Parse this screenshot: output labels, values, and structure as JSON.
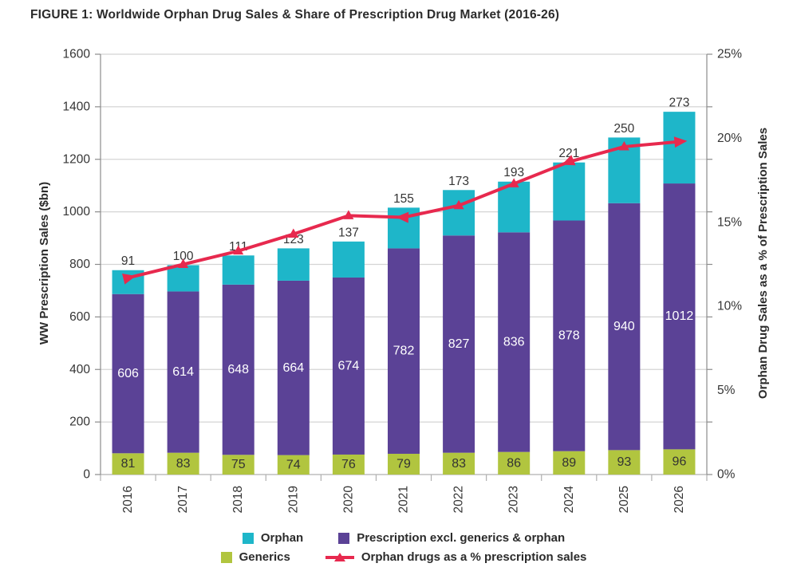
{
  "title": "FIGURE 1: Worldwide Orphan Drug Sales & Share of Prescription Drug Market (2016-26)",
  "colors": {
    "orphan": "#1eb6c9",
    "prescription": "#5b4296",
    "generics": "#b1c53f",
    "line": "#e7294e",
    "grid": "#d4d4d4",
    "axis_line": "#8c8c8c",
    "baseline": "#b0b0b0",
    "tick_text": "#353535",
    "bar_label_light": "#ffffff",
    "bar_label_dark": "#333333"
  },
  "chart_data": {
    "type": "stacked-bar + line combo",
    "categories": [
      "2016",
      "2017",
      "2018",
      "2019",
      "2020",
      "2021",
      "2022",
      "2023",
      "2024",
      "2025",
      "2026"
    ],
    "series": [
      {
        "name": "Generics",
        "type": "bar",
        "color_key": "generics",
        "label_inside": "dark",
        "values": [
          81,
          83,
          75,
          74,
          76,
          79,
          83,
          86,
          89,
          93,
          96
        ]
      },
      {
        "name": "Prescription excl. generics & orphan",
        "type": "bar",
        "color_key": "prescription",
        "label_inside": "light",
        "values": [
          606,
          614,
          648,
          664,
          674,
          782,
          827,
          836,
          878,
          940,
          1012
        ]
      },
      {
        "name": "Orphan",
        "type": "bar",
        "color_key": "orphan",
        "label_above": true,
        "values": [
          91,
          100,
          111,
          123,
          137,
          155,
          173,
          193,
          221,
          250,
          273
        ]
      },
      {
        "name": "Orphan drugs as a % prescription sales",
        "type": "line",
        "axis": "right",
        "color_key": "line",
        "values": [
          11.7,
          12.5,
          13.3,
          14.3,
          15.4,
          15.3,
          16.0,
          17.3,
          18.6,
          19.5,
          19.8
        ],
        "markers": [
          "in-arrow",
          "tri",
          "tri",
          "tri",
          "tri",
          "in-arrow",
          "tri",
          "tri",
          "in-arrow",
          "tri",
          "out-arrow"
        ]
      }
    ],
    "left_axis": {
      "label": "WW Prescription Sales ($bn)",
      "min": 0,
      "max": 1600,
      "step": 200,
      "ticks": [
        "0",
        "200",
        "400",
        "600",
        "800",
        "1000",
        "1200",
        "1400",
        "1600"
      ]
    },
    "right_axis": {
      "label": "Orphan Drug Sales as a % of Prescription Sales",
      "min": 0,
      "max": 25,
      "step": 5,
      "ticks": [
        "0%",
        "5%",
        "10%",
        "15%",
        "20%",
        "25%"
      ]
    },
    "grid": "horizontal",
    "legend_position": "bottom"
  },
  "legend": {
    "rows": [
      [
        {
          "label": "Orphan",
          "marker": "square",
          "color_key": "orphan"
        },
        {
          "label": "Prescription excl. generics & orphan",
          "marker": "square",
          "color_key": "prescription"
        }
      ],
      [
        {
          "label": "Generics",
          "marker": "square",
          "color_key": "generics"
        },
        {
          "label": "Orphan drugs as a % prescription sales",
          "marker": "line-triangle",
          "color_key": "line"
        }
      ]
    ]
  }
}
